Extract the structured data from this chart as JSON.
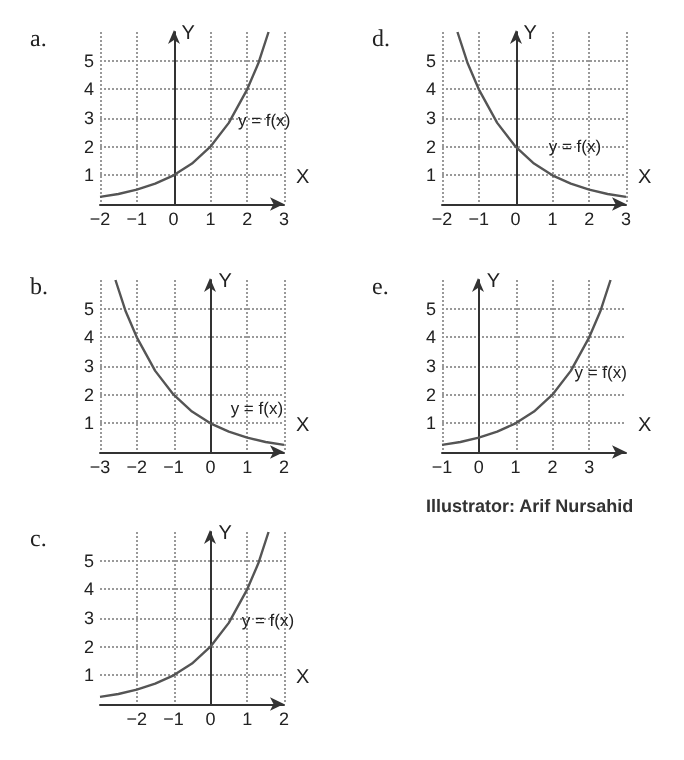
{
  "chart_data": [
    {
      "type": "line",
      "title": "a.",
      "xlabel": "X",
      "ylabel": "Y",
      "xlim": [
        -2,
        3
      ],
      "ylim": [
        0,
        6
      ],
      "xticks": [
        -2,
        -1,
        0,
        1,
        2,
        3
      ],
      "yticks": [
        1,
        2,
        3,
        4,
        5
      ],
      "grid": true,
      "marker": "none",
      "line_style": "solid",
      "annotations": [
        "y = f(x)"
      ],
      "series": [
        {
          "color": "#555555",
          "x": [
            -2,
            -1.5,
            -1,
            -0.5,
            0,
            0.5,
            1,
            1.5,
            2,
            2.3,
            2.58
          ],
          "values": [
            0.25,
            0.35,
            0.5,
            0.71,
            1,
            1.41,
            2,
            2.83,
            4,
            4.9,
            6
          ]
        }
      ]
    },
    {
      "type": "line",
      "title": "d.",
      "xlabel": "X",
      "ylabel": "Y",
      "xlim": [
        -2,
        3
      ],
      "ylim": [
        0,
        6
      ],
      "xticks": [
        -2,
        -1,
        0,
        1,
        2,
        3
      ],
      "yticks": [
        1,
        2,
        3,
        4,
        5
      ],
      "grid": true,
      "marker": "none",
      "line_style": "solid",
      "annotations": [
        "y = f(x)"
      ],
      "series": [
        {
          "color": "#555555",
          "x": [
            -1.58,
            -1.3,
            -1,
            -0.5,
            0,
            0.5,
            1,
            1.5,
            2,
            2.5,
            3
          ],
          "values": [
            6,
            4.9,
            4,
            2.83,
            2,
            1.41,
            1,
            0.71,
            0.5,
            0.35,
            0.25
          ]
        }
      ]
    },
    {
      "type": "line",
      "title": "b.",
      "xlabel": "X",
      "ylabel": "Y",
      "xlim": [
        -3,
        2
      ],
      "ylim": [
        0,
        6
      ],
      "xticks": [
        -3,
        -2,
        -1,
        0,
        1,
        2
      ],
      "yticks": [
        1,
        2,
        3,
        4,
        5
      ],
      "grid": true,
      "marker": "none",
      "line_style": "solid",
      "annotations": [
        "y = f(x)"
      ],
      "series": [
        {
          "color": "#555555",
          "x": [
            -2.58,
            -2.3,
            -2,
            -1.5,
            -1,
            -0.5,
            0,
            0.5,
            1,
            1.5,
            2
          ],
          "values": [
            6,
            4.9,
            4,
            2.83,
            2,
            1.41,
            1,
            0.71,
            0.5,
            0.35,
            0.25
          ]
        }
      ]
    },
    {
      "type": "line",
      "title": "e.",
      "xlabel": "X",
      "ylabel": "Y",
      "xlim": [
        -1,
        4
      ],
      "ylim": [
        0,
        6
      ],
      "xticks": [
        -1,
        0,
        1,
        2,
        3
      ],
      "yticks": [
        1,
        2,
        3,
        4,
        5
      ],
      "grid": true,
      "marker": "none",
      "line_style": "solid",
      "annotations": [
        "y = f(x)",
        "Illustrator: Arif Nursahid"
      ],
      "series": [
        {
          "color": "#555555",
          "x": [
            -1,
            -0.5,
            0,
            0.5,
            1,
            1.5,
            2,
            2.5,
            3,
            3.3,
            3.58
          ],
          "values": [
            0.25,
            0.35,
            0.5,
            0.71,
            1,
            1.41,
            2,
            2.83,
            4,
            4.9,
            6
          ]
        }
      ]
    },
    {
      "type": "line",
      "title": "c.",
      "xlabel": "X",
      "ylabel": "Y",
      "xlim": [
        -3,
        2
      ],
      "ylim": [
        0,
        6
      ],
      "xticks": [
        -2,
        -1,
        0,
        1,
        2
      ],
      "yticks": [
        1,
        2,
        3,
        4,
        5
      ],
      "grid": true,
      "marker": "none",
      "line_style": "solid",
      "annotations": [
        "y = f(x)"
      ],
      "series": [
        {
          "color": "#555555",
          "x": [
            -3,
            -2.5,
            -2,
            -1.5,
            -1,
            -0.5,
            0,
            0.5,
            1,
            1.3,
            1.58
          ],
          "values": [
            0.25,
            0.35,
            0.5,
            0.71,
            1,
            1.41,
            2,
            2.83,
            4,
            4.9,
            6
          ]
        }
      ]
    }
  ]
}
